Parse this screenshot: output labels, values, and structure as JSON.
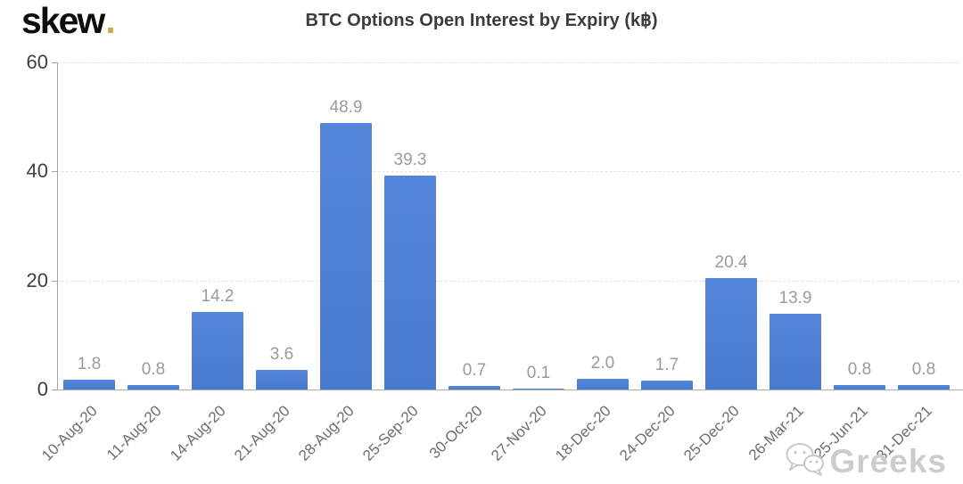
{
  "logo": {
    "text": "skew",
    "dot": ".",
    "dot_color": "#d2a84f"
  },
  "watermark": {
    "text": "Greeks",
    "icon": "wechat-icon",
    "color": "#c8c8c8"
  },
  "chart_data": {
    "type": "bar",
    "title": "BTC Options Open Interest by Expiry (k฿)",
    "categories": [
      "10-Aug-20",
      "11-Aug-20",
      "14-Aug-20",
      "21-Aug-20",
      "28-Aug-20",
      "25-Sep-20",
      "30-Oct-20",
      "27-Nov-20",
      "18-Dec-20",
      "24-Dec-20",
      "25-Dec-20",
      "26-Mar-21",
      "25-Jun-21",
      "31-Dec-21"
    ],
    "values": [
      1.8,
      0.8,
      14.2,
      3.6,
      48.9,
      39.3,
      0.7,
      0.1,
      2.0,
      1.7,
      20.4,
      13.9,
      0.8,
      0.8
    ],
    "value_labels": [
      "1.8",
      "0.8",
      "14.2",
      "3.6",
      "48.9",
      "39.3",
      "0.7",
      "0.1",
      "2.0",
      "1.7",
      "20.4",
      "13.9",
      "0.8",
      "0.8"
    ],
    "xlabel": "",
    "ylabel": "",
    "ylim": [
      0,
      60
    ],
    "yticks": [
      0,
      20,
      40,
      60
    ],
    "grid": "dashed-horizontal",
    "legend": "none",
    "bar_color": "#5584db",
    "bar_color_bottom": "#4a7ad0",
    "value_label_color": "#9b9b9b"
  }
}
